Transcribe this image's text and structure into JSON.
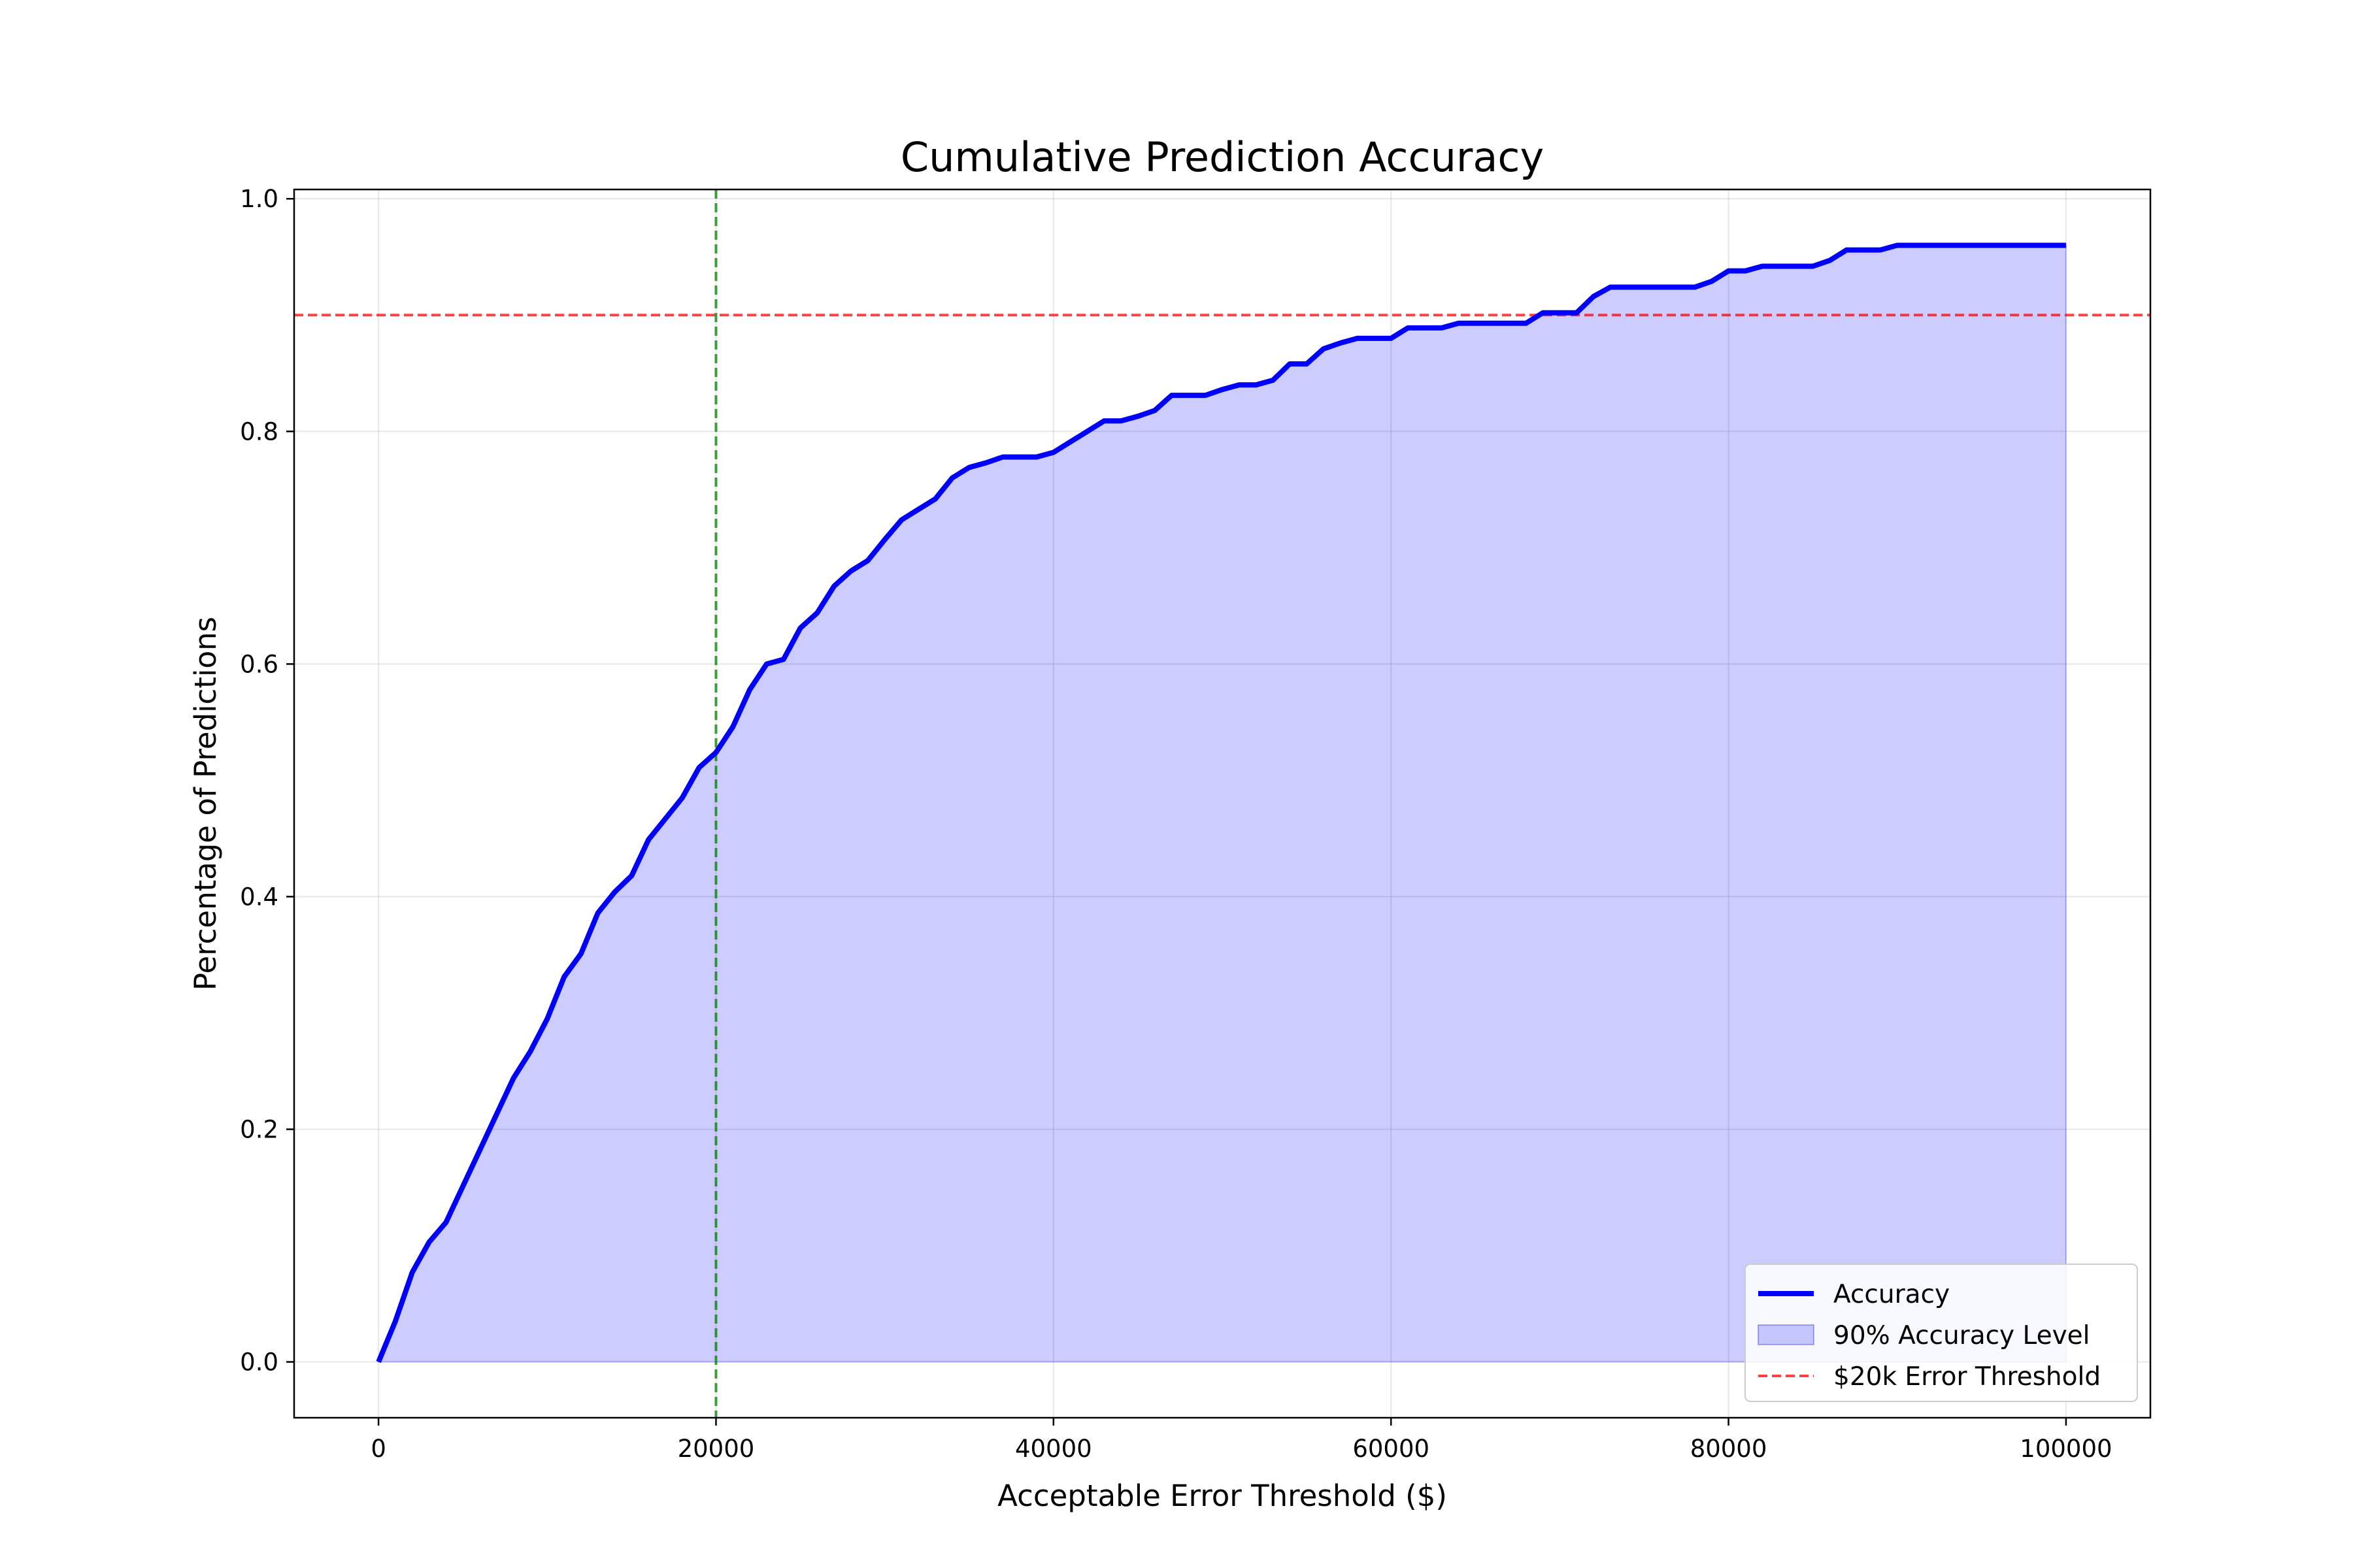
{
  "chart_data": {
    "type": "line",
    "title": "Cumulative Prediction Accuracy",
    "xlabel": "Acceptable Error Threshold ($)",
    "ylabel": "Percentage of Predictions",
    "xlim": [
      -5000,
      105000
    ],
    "ylim": [
      -0.048,
      1.008
    ],
    "x_ticks": [
      0,
      20000,
      40000,
      60000,
      80000,
      100000
    ],
    "y_ticks": [
      0.0,
      0.2,
      0.4,
      0.6,
      0.8,
      1.0
    ],
    "x_tick_labels": [
      "0",
      "20000",
      "40000",
      "60000",
      "80000",
      "100000"
    ],
    "y_tick_labels": [
      "0.0",
      "0.2",
      "0.4",
      "0.6",
      "0.8",
      "1.0"
    ],
    "grid": true,
    "legend_position": "bottom-right",
    "series": [
      {
        "name": "Accuracy",
        "kind": "line",
        "color": "#0000ff",
        "fill": true,
        "fill_color": "#0000ff",
        "fill_opacity": 0.2,
        "x": [
          0,
          1000,
          2000,
          3000,
          4000,
          5000,
          6000,
          7000,
          8000,
          9000,
          10000,
          11000,
          12000,
          13000,
          14000,
          15000,
          16000,
          17000,
          18000,
          19000,
          20000,
          21000,
          22000,
          23000,
          24000,
          25000,
          26000,
          27000,
          28000,
          29000,
          30000,
          31000,
          32000,
          33000,
          34000,
          35000,
          36000,
          37000,
          38000,
          39000,
          40000,
          41000,
          42000,
          43000,
          44000,
          45000,
          46000,
          47000,
          48000,
          49000,
          50000,
          51000,
          52000,
          53000,
          54000,
          55000,
          56000,
          57000,
          58000,
          59000,
          60000,
          61000,
          62000,
          63000,
          64000,
          65000,
          66000,
          67000,
          68000,
          69000,
          70000,
          71000,
          72000,
          73000,
          74000,
          75000,
          76000,
          77000,
          78000,
          79000,
          80000,
          81000,
          82000,
          83000,
          84000,
          85000,
          86000,
          87000,
          88000,
          89000,
          90000,
          91000,
          92000,
          93000,
          94000,
          95000,
          96000,
          97000,
          98000,
          99000,
          100000
        ],
        "y": [
          0.0,
          0.035,
          0.077,
          0.103,
          0.12,
          0.151,
          0.182,
          0.213,
          0.244,
          0.267,
          0.295,
          0.331,
          0.351,
          0.386,
          0.404,
          0.418,
          0.449,
          0.467,
          0.485,
          0.511,
          0.524,
          0.546,
          0.578,
          0.6,
          0.604,
          0.631,
          0.644,
          0.667,
          0.68,
          0.689,
          0.707,
          0.724,
          0.733,
          0.742,
          0.76,
          0.769,
          0.773,
          0.778,
          0.778,
          0.778,
          0.782,
          0.791,
          0.8,
          0.809,
          0.809,
          0.813,
          0.818,
          0.831,
          0.831,
          0.831,
          0.836,
          0.84,
          0.84,
          0.844,
          0.858,
          0.858,
          0.871,
          0.876,
          0.88,
          0.88,
          0.88,
          0.889,
          0.889,
          0.889,
          0.893,
          0.893,
          0.893,
          0.893,
          0.893,
          0.902,
          0.902,
          0.902,
          0.916,
          0.924,
          0.924,
          0.924,
          0.924,
          0.924,
          0.924,
          0.929,
          0.938,
          0.938,
          0.942,
          0.942,
          0.942,
          0.942,
          0.947,
          0.956,
          0.956,
          0.956,
          0.96,
          0.96,
          0.96,
          0.96,
          0.96,
          0.96,
          0.96,
          0.96,
          0.96,
          0.96,
          0.96
        ]
      },
      {
        "name": "90% Accuracy Level",
        "kind": "fill-legend",
        "color": "#0000ff"
      },
      {
        "name": "$20k Error Threshold",
        "kind": "hline",
        "y": 0.9,
        "color": "#ff0000"
      },
      {
        "name": "",
        "kind": "vline",
        "x": 20000,
        "color": "#008000"
      }
    ]
  }
}
